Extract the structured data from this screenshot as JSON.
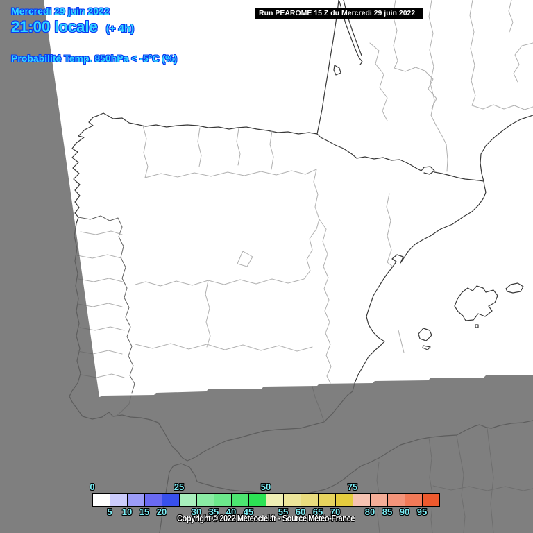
{
  "header": {
    "date_line": "Mercredi 29 juin 2022",
    "time_line": "21:00 locale",
    "time_offset": "(+ 4h)",
    "variable_line": "Probabilité Temp. 850hPa < -5°C (%)",
    "run_label": "Run PEAROME 15 Z du Mercredi 29 juin 2022",
    "text_color": "#33d6ff",
    "text_outline_color": "#0a3af2"
  },
  "map": {
    "background_color": "#7f7f7f",
    "domain_fill_color": "#ffffff",
    "coast_color_inside": "#383838",
    "coast_color_outside": "#5d5d5d",
    "border_color_inside": "#b0b0b0",
    "border_color_outside": "#6e6e6e"
  },
  "legend": {
    "unit": "%",
    "scale_values": [
      0,
      5,
      10,
      15,
      20,
      25,
      30,
      35,
      40,
      45,
      50,
      55,
      60,
      65,
      70,
      75,
      80,
      85,
      90,
      95
    ],
    "top_ticks": [
      [
        0,
        "0"
      ],
      [
        5,
        "25"
      ],
      [
        10,
        "50"
      ],
      [
        15,
        "75"
      ]
    ],
    "bottom_ticks": [
      [
        1,
        "5"
      ],
      [
        2,
        "10"
      ],
      [
        3,
        "15"
      ],
      [
        4,
        "20"
      ],
      [
        6,
        "30"
      ],
      [
        7,
        "35"
      ],
      [
        8,
        "40"
      ],
      [
        9,
        "45"
      ],
      [
        11,
        "55"
      ],
      [
        12,
        "60"
      ],
      [
        13,
        "65"
      ],
      [
        14,
        "70"
      ],
      [
        16,
        "80"
      ],
      [
        17,
        "85"
      ],
      [
        18,
        "90"
      ],
      [
        19,
        "95"
      ]
    ],
    "cell_colors": [
      "#ffffff",
      "#ccccfc",
      "#9c9cf8",
      "#6a6af2",
      "#3850ec",
      "#a8efbc",
      "#8aeca4",
      "#6ce98c",
      "#4ce670",
      "#2ce254",
      "#efefb4",
      "#ece59a",
      "#e9dc7e",
      "#e7d45e",
      "#e5cc3e",
      "#f7c3b2",
      "#f5ad97",
      "#f3947a",
      "#f17a58",
      "#ee5a2e"
    ],
    "tick_color": "#7beef6"
  },
  "footer": {
    "copyright": "Copyright © 2022 Meteociel.fr - Source Météo-France"
  }
}
